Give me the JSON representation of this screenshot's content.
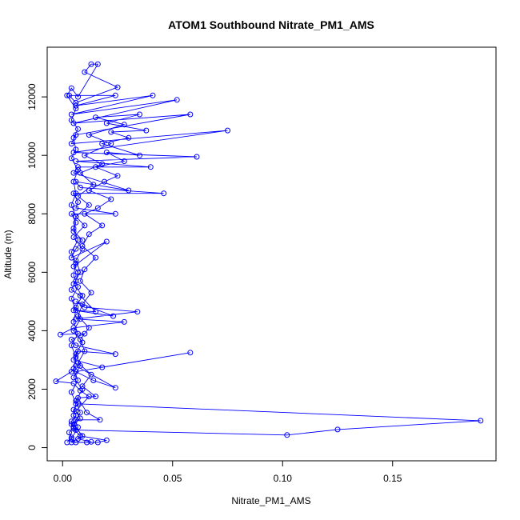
{
  "chart_data": {
    "type": "line",
    "title": "ATOM1 Southbound Nitrate_PM1_AMS",
    "xlabel": "Nitrate_PM1_AMS",
    "ylabel": "Altitude (m)",
    "xlim": [
      -0.007,
      0.197
    ],
    "ylim": [
      -450,
      13700
    ],
    "x_ticks": [
      0.0,
      0.05,
      0.1,
      0.15
    ],
    "x_tick_labels": [
      "0.00",
      "0.05",
      "0.10",
      "0.15"
    ],
    "y_ticks": [
      0,
      2000,
      4000,
      6000,
      8000,
      10000,
      12000
    ],
    "y_tick_labels": [
      "0",
      "2000",
      "4000",
      "6000",
      "8000",
      "10000",
      "12000"
    ],
    "grid": false,
    "legend": "none",
    "series": [
      {
        "color": "#0000ff",
        "marker": "open-circle",
        "points": [
          [
            0.002,
            180
          ],
          [
            0.004,
            350
          ],
          [
            0.003,
            520
          ],
          [
            0.005,
            700
          ],
          [
            0.004,
            900
          ],
          [
            0.006,
            1100
          ],
          [
            0.005,
            1300
          ],
          [
            0.007,
            1500
          ],
          [
            0.19,
            920
          ],
          [
            0.125,
            620
          ],
          [
            0.102,
            430
          ],
          [
            0.006,
            600
          ],
          [
            0.004,
            800
          ],
          [
            0.008,
            1000
          ],
          [
            0.006,
            1250
          ],
          [
            0.012,
            1750
          ],
          [
            0.008,
            1950
          ],
          [
            0.005,
            2200
          ],
          [
            -0.003,
            2270
          ],
          [
            0.004,
            2600
          ],
          [
            0.006,
            2800
          ],
          [
            0.024,
            2050
          ],
          [
            0.014,
            2300
          ],
          [
            0.006,
            2600
          ],
          [
            0.058,
            3250
          ],
          [
            0.018,
            2750
          ],
          [
            0.005,
            3000
          ],
          [
            0.007,
            3300
          ],
          [
            0.024,
            3200
          ],
          [
            0.006,
            3500
          ],
          [
            0.004,
            3700
          ],
          [
            0.01,
            3900
          ],
          [
            -0.001,
            3870
          ],
          [
            0.005,
            4100
          ],
          [
            0.028,
            4300
          ],
          [
            0.006,
            4400
          ],
          [
            0.034,
            4650
          ],
          [
            0.01,
            4800
          ],
          [
            0.006,
            5000
          ],
          [
            0.023,
            4500
          ],
          [
            0.005,
            4700
          ],
          [
            0.015,
            4650
          ],
          [
            0.008,
            5200
          ],
          [
            0.004,
            5400
          ],
          [
            0.006,
            5700
          ],
          [
            0.007,
            6000
          ],
          [
            0.005,
            6200
          ],
          [
            0.02,
            7050
          ],
          [
            0.004,
            6500
          ],
          [
            0.006,
            6800
          ],
          [
            0.009,
            7100
          ],
          [
            0.005,
            7400
          ],
          [
            0.006,
            7700
          ],
          [
            0.004,
            8000
          ],
          [
            0.024,
            8000
          ],
          [
            0.006,
            8200
          ],
          [
            0.007,
            8400
          ],
          [
            0.005,
            8700
          ],
          [
            0.046,
            8700
          ],
          [
            0.008,
            8900
          ],
          [
            0.006,
            9100
          ],
          [
            0.03,
            8800
          ],
          [
            0.005,
            9400
          ],
          [
            0.007,
            9600
          ],
          [
            0.04,
            9600
          ],
          [
            0.006,
            9800
          ],
          [
            0.061,
            9950
          ],
          [
            0.005,
            10100
          ],
          [
            0.075,
            10850
          ],
          [
            0.004,
            10400
          ],
          [
            0.006,
            10700
          ],
          [
            0.058,
            11400
          ],
          [
            0.005,
            11100
          ],
          [
            0.052,
            11900
          ],
          [
            0.004,
            11400
          ],
          [
            0.041,
            12050
          ],
          [
            0.006,
            11700
          ],
          [
            0.024,
            12050
          ],
          [
            0.003,
            12050
          ],
          [
            0.006,
            11800
          ],
          [
            0.025,
            12330
          ],
          [
            0.01,
            12850
          ],
          [
            0.013,
            13120
          ],
          [
            0.016,
            13120
          ],
          [
            0.007,
            12000
          ],
          [
            0.004,
            12300
          ],
          [
            0.002,
            12050
          ],
          [
            0.006,
            11600
          ],
          [
            0.004,
            11200
          ],
          [
            0.007,
            10900
          ],
          [
            0.005,
            10600
          ],
          [
            0.006,
            10200
          ],
          [
            0.004,
            9900
          ],
          [
            0.007,
            9500
          ],
          [
            0.005,
            9100
          ],
          [
            0.006,
            8700
          ],
          [
            0.004,
            8300
          ],
          [
            0.006,
            7900
          ],
          [
            0.005,
            7500
          ],
          [
            0.007,
            7100
          ],
          [
            0.004,
            6700
          ],
          [
            0.006,
            6300
          ],
          [
            0.005,
            5900
          ],
          [
            0.007,
            5500
          ],
          [
            0.004,
            5100
          ],
          [
            0.006,
            4700
          ],
          [
            0.005,
            4300
          ],
          [
            0.007,
            3900
          ],
          [
            0.004,
            3500
          ],
          [
            0.006,
            3100
          ],
          [
            0.005,
            2700
          ],
          [
            0.007,
            2300
          ],
          [
            0.004,
            1900
          ],
          [
            0.006,
            1500
          ],
          [
            0.005,
            1100
          ],
          [
            0.007,
            700
          ],
          [
            0.004,
            300
          ],
          [
            0.006,
            180
          ],
          [
            0.016,
            180
          ],
          [
            0.02,
            250
          ],
          [
            0.008,
            400
          ],
          [
            0.005,
            650
          ],
          [
            0.006,
            950
          ],
          [
            0.017,
            950
          ],
          [
            0.011,
            1200
          ],
          [
            0.007,
            1700
          ],
          [
            0.015,
            1750
          ],
          [
            0.009,
            2100
          ],
          [
            0.013,
            2500
          ],
          [
            0.007,
            2900
          ],
          [
            0.01,
            3300
          ],
          [
            0.008,
            3700
          ],
          [
            0.012,
            4100
          ],
          [
            0.007,
            4500
          ],
          [
            0.009,
            4900
          ],
          [
            0.013,
            5300
          ],
          [
            0.008,
            5700
          ],
          [
            0.01,
            6100
          ],
          [
            0.015,
            6500
          ],
          [
            0.009,
            6900
          ],
          [
            0.012,
            7300
          ],
          [
            0.018,
            7600
          ],
          [
            0.01,
            8000
          ],
          [
            0.016,
            8200
          ],
          [
            0.022,
            8500
          ],
          [
            0.012,
            8800
          ],
          [
            0.019,
            9100
          ],
          [
            0.025,
            9300
          ],
          [
            0.015,
            9600
          ],
          [
            0.028,
            9800
          ],
          [
            0.02,
            10100
          ],
          [
            0.035,
            10000
          ],
          [
            0.018,
            10400
          ],
          [
            0.03,
            10600
          ],
          [
            0.022,
            10800
          ],
          [
            0.038,
            10850
          ],
          [
            0.02,
            11100
          ],
          [
            0.035,
            11400
          ],
          [
            0.015,
            11300
          ],
          [
            0.028,
            11050
          ],
          [
            0.012,
            10700
          ],
          [
            0.022,
            10400
          ],
          [
            0.01,
            10000
          ],
          [
            0.018,
            9700
          ],
          [
            0.008,
            9400
          ],
          [
            0.014,
            9000
          ],
          [
            0.007,
            8600
          ],
          [
            0.012,
            8300
          ],
          [
            0.006,
            7900
          ],
          [
            0.01,
            7600
          ],
          [
            0.005,
            7200
          ],
          [
            0.009,
            6800
          ],
          [
            0.006,
            6400
          ],
          [
            0.008,
            6000
          ],
          [
            0.005,
            5600
          ],
          [
            0.009,
            5200
          ],
          [
            0.006,
            4800
          ],
          [
            0.008,
            4400
          ],
          [
            0.005,
            4000
          ],
          [
            0.009,
            3600
          ],
          [
            0.006,
            3200
          ],
          [
            0.008,
            2800
          ],
          [
            0.005,
            2400
          ],
          [
            0.009,
            2000
          ],
          [
            0.006,
            1600
          ],
          [
            0.008,
            1200
          ],
          [
            0.005,
            800
          ],
          [
            0.009,
            400
          ],
          [
            0.004,
            180
          ],
          [
            0.011,
            180
          ],
          [
            0.013,
            200
          ],
          [
            0.007,
            300
          ]
        ]
      }
    ]
  }
}
